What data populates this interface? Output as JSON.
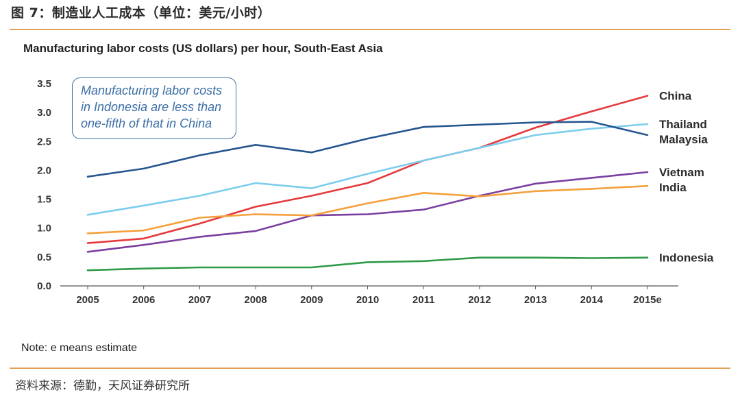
{
  "figure": {
    "title": "图 7：制造业人工成本（单位：美元/小时）",
    "source": "资料来源：德勤，天风证券研究所"
  },
  "chart_data": {
    "type": "line",
    "title": "Manufacturing labor costs (US dollars) per hour, South-East Asia",
    "xlabel": "",
    "ylabel": "",
    "x": [
      "2005",
      "2006",
      "2007",
      "2008",
      "2009",
      "2010",
      "2011",
      "2012",
      "2013",
      "2014",
      "2015e"
    ],
    "ylim": [
      0,
      3.5
    ],
    "yticks": [
      "0.0",
      "0.5",
      "1.0",
      "1.5",
      "2.0",
      "2.5",
      "3.0",
      "3.5"
    ],
    "grid": false,
    "series": [
      {
        "name": "China",
        "color": "#e5393c",
        "values": [
          0.74,
          0.82,
          1.08,
          1.37,
          1.56,
          1.78,
          2.17,
          2.39,
          2.74,
          3.02,
          3.29
        ]
      },
      {
        "name": "Thailand",
        "color": "#7ccdee",
        "values": [
          1.23,
          1.39,
          1.56,
          1.78,
          1.69,
          1.94,
          2.17,
          2.39,
          2.61,
          2.72,
          2.8
        ]
      },
      {
        "name": "Malaysia",
        "color": "#26568f",
        "values": [
          1.89,
          2.03,
          2.26,
          2.44,
          2.31,
          2.55,
          2.75,
          2.79,
          2.83,
          2.84,
          2.61
        ]
      },
      {
        "name": "Vietnam",
        "color": "#7a3fa0",
        "values": [
          0.59,
          0.71,
          0.85,
          0.95,
          1.22,
          1.24,
          1.32,
          1.56,
          1.77,
          1.87,
          1.97
        ]
      },
      {
        "name": "India",
        "color": "#f4a03b",
        "values": [
          0.91,
          0.96,
          1.18,
          1.24,
          1.22,
          1.43,
          1.61,
          1.55,
          1.64,
          1.68,
          1.73
        ]
      },
      {
        "name": "Indonesia",
        "color": "#2e9a47",
        "values": [
          0.27,
          0.3,
          0.32,
          0.32,
          0.32,
          0.41,
          0.43,
          0.49,
          0.49,
          0.48,
          0.49
        ]
      }
    ],
    "annotation": [
      "Manufacturing labor costs",
      "in Indonesia are less than",
      "one-fifth of that in China"
    ],
    "note": "Note: e means estimate"
  }
}
